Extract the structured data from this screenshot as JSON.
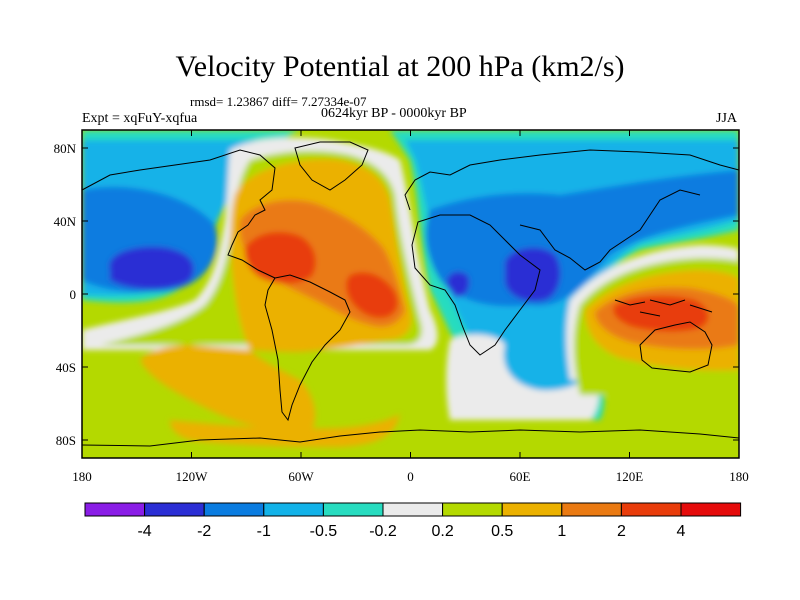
{
  "title": "Velocity Potential at 200 hPa (km2/s)",
  "stats": "rmsd= 1.23867 diff= 7.27334e-07",
  "experiment": "Expt = xqFuY-xqfua",
  "period": "0624kyr BP - 0000kyr BP",
  "season": "JJA",
  "map": {
    "projection": "cylindrical equidistant",
    "lon_range": [
      -180,
      180
    ],
    "lat_range": [
      -90,
      90
    ],
    "x_ticks": [
      {
        "lon": -180,
        "label": "180"
      },
      {
        "lon": -120,
        "label": "120W"
      },
      {
        "lon": -60,
        "label": "60W"
      },
      {
        "lon": 0,
        "label": "0"
      },
      {
        "lon": 60,
        "label": "60E"
      },
      {
        "lon": 120,
        "label": "120E"
      },
      {
        "lon": 180,
        "label": "180"
      }
    ],
    "y_ticks": [
      {
        "lat": 80,
        "label": "80N"
      },
      {
        "lat": 40,
        "label": "40N"
      },
      {
        "lat": 0,
        "label": "0"
      },
      {
        "lat": -40,
        "label": "40S"
      },
      {
        "lat": -80,
        "label": "80S"
      }
    ],
    "ocean_background_color": "#b4d900"
  },
  "colorbar": {
    "levels": [
      "-4",
      "-2",
      "-1",
      "-0.5",
      "-0.2",
      "0.2",
      "0.5",
      "1",
      "2",
      "4"
    ],
    "colors": [
      "#8a1de6",
      "#2b2ed4",
      "#0a7ce0",
      "#12b2e8",
      "#28dcc0",
      "#ebebeb",
      "#b4d900",
      "#ebb100",
      "#ea7a12",
      "#e83c0a",
      "#e50b0b"
    ]
  },
  "chart_data": {
    "type": "heatmap",
    "title": "Velocity Potential at 200 hPa (km2/s)",
    "units": "km2/s",
    "contour_levels": [
      -4,
      -2,
      -1,
      -0.5,
      -0.2,
      0.2,
      0.5,
      1,
      2,
      4
    ],
    "features": [
      {
        "name": "Atlantic/Americas high",
        "lon": -40,
        "lat": 15,
        "level": "> 2"
      },
      {
        "name": "Atlantic equatorial high",
        "lon": -20,
        "lat": 0,
        "level": "> 2"
      },
      {
        "name": "Maritime Continent high",
        "lon": 130,
        "lat": -5,
        "level": "> 2"
      },
      {
        "name": "North Pacific low",
        "lon": -150,
        "lat": 15,
        "level": "< -2"
      },
      {
        "name": "East Africa / Arabia low",
        "lon": 50,
        "lat": 15,
        "level": "< -2"
      },
      {
        "name": "Central Africa low",
        "lon": 20,
        "lat": 5,
        "level": "< -2"
      },
      {
        "name": "South Indian Ocean neutral tongue",
        "lon": 45,
        "lat": -55,
        "level": "-0.2 to 0.2"
      },
      {
        "name": "Southern Ocean belt",
        "lon": 0,
        "lat": -60,
        "level": "0.2 to 0.5"
      }
    ]
  }
}
